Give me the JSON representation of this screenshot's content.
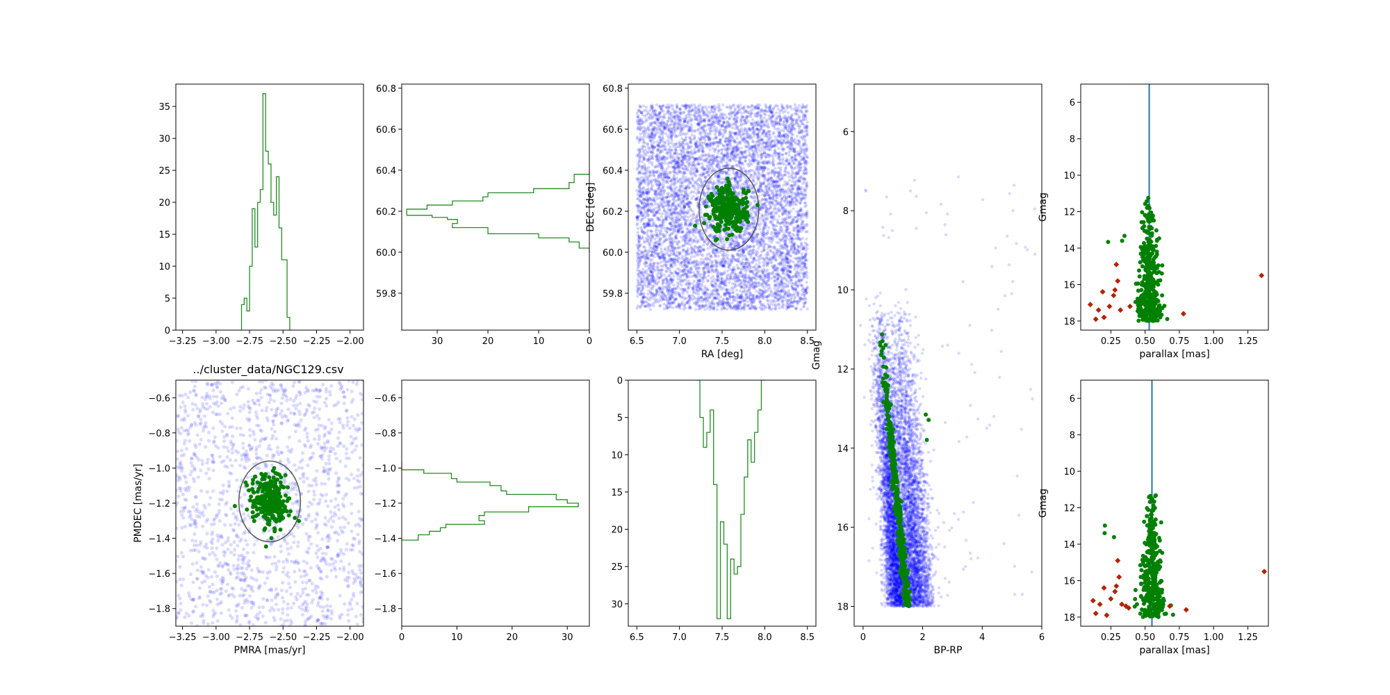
{
  "figure_title": "../cluster_data/NGC129.csv",
  "colors": {
    "field": "#0000ff",
    "members": "#008000",
    "hist": "#228b22",
    "ellipse": "#555555",
    "parallax_line": "#1f77b4",
    "outliers": "#b22200"
  },
  "chart_data": [
    {
      "id": "pmra-hist",
      "type": "histogram",
      "xlim": [
        -3.3,
        -1.9
      ],
      "ylim": [
        0,
        38.5
      ],
      "xticks": [
        -3.25,
        -3.0,
        -2.75,
        -2.5,
        -2.25,
        -2.0
      ],
      "xtick_labels": [
        "−3.25",
        "−3.00",
        "−2.75",
        "−2.50",
        "−2.25",
        "−2.00"
      ],
      "yticks": [
        0,
        5,
        10,
        15,
        20,
        25,
        30,
        35
      ],
      "ytick_labels": [
        "0",
        "5",
        "10",
        "15",
        "20",
        "25",
        "30",
        "35"
      ],
      "xlabel": "",
      "ylabel": "",
      "edges": [
        -2.81,
        -2.79,
        -2.77,
        -2.75,
        -2.73,
        -2.71,
        -2.69,
        -2.67,
        -2.65,
        -2.63,
        -2.61,
        -2.59,
        -2.57,
        -2.55,
        -2.53,
        -2.51,
        -2.49,
        -2.47,
        -2.45,
        -2.43
      ],
      "counts": [
        4,
        5,
        3,
        10,
        19,
        13,
        20,
        22,
        37,
        28,
        26,
        20,
        18,
        24,
        16,
        11,
        11,
        2,
        0
      ]
    },
    {
      "id": "dec-hist",
      "type": "histogram_horizontal",
      "xlim": [
        0,
        37
      ],
      "ylim": [
        59.62,
        60.82
      ],
      "x_inverted": true,
      "xticks": [
        30,
        20,
        10,
        0
      ],
      "xtick_labels": [
        "30",
        "20",
        "10",
        "0"
      ],
      "yticks": [
        59.8,
        60.0,
        60.2,
        60.4,
        60.6,
        60.8
      ],
      "ytick_labels": [
        "59.8",
        "60.0",
        "60.2",
        "60.4",
        "60.6",
        "60.8"
      ],
      "edges": [
        60.0,
        60.02,
        60.05,
        60.07,
        60.09,
        60.12,
        60.14,
        60.16,
        60.17,
        60.18,
        60.21,
        60.23,
        60.25,
        60.27,
        60.29,
        60.31,
        60.34,
        60.38,
        60.4
      ],
      "counts": [
        0,
        2,
        4,
        10,
        20,
        27,
        26,
        28,
        31,
        36,
        32,
        27,
        21,
        20,
        11,
        4,
        3,
        0
      ]
    },
    {
      "id": "ra-dec-scatter",
      "type": "scatter",
      "xlim": [
        6.4,
        8.6
      ],
      "ylim": [
        59.62,
        60.82
      ],
      "xticks": [
        6.5,
        7.0,
        7.5,
        8.0,
        8.5
      ],
      "xtick_labels": [
        "6.5",
        "7.0",
        "7.5",
        "8.0",
        "8.5"
      ],
      "yticks": [
        59.8,
        60.0,
        60.2,
        60.4,
        60.6,
        60.8
      ],
      "ytick_labels": [
        "59.8",
        "60.0",
        "60.2",
        "60.4",
        "60.6",
        "60.8"
      ],
      "xlabel": "RA [deg]",
      "ylabel": "DEC [deg]",
      "field_region": {
        "x": [
          6.5,
          8.5
        ],
        "y": [
          59.72,
          60.72
        ]
      },
      "cluster_center": [
        7.58,
        60.21
      ],
      "ellipse_semi_axes": [
        0.35,
        0.2
      ]
    },
    {
      "id": "cmd",
      "type": "scatter",
      "xlim": [
        -0.3,
        6.0
      ],
      "ylim": [
        18.5,
        4.8
      ],
      "y_inverted": true,
      "xticks": [
        0,
        2,
        4,
        6
      ],
      "xtick_labels": [
        "0",
        "2",
        "4",
        "6"
      ],
      "yticks": [
        6,
        8,
        10,
        12,
        14,
        16,
        18
      ],
      "ytick_labels": [
        "6",
        "8",
        "10",
        "12",
        "14",
        "16",
        "18"
      ],
      "xlabel": "BP-RP",
      "ylabel": "Gmag"
    },
    {
      "id": "parallax-top",
      "type": "scatter",
      "xlim": [
        0.03,
        1.4
      ],
      "ylim": [
        18.5,
        5.0
      ],
      "y_inverted": true,
      "xticks": [
        0.25,
        0.5,
        0.75,
        1.0,
        1.25
      ],
      "xtick_labels": [
        "0.25",
        "0.50",
        "0.75",
        "1.00",
        "1.25"
      ],
      "yticks": [
        6,
        8,
        10,
        12,
        14,
        16,
        18
      ],
      "ytick_labels": [
        "6",
        "8",
        "10",
        "12",
        "14",
        "16",
        "18"
      ],
      "xlabel": "parallax [mas]",
      "ylabel": "Gmag",
      "vline": 0.53,
      "outliers": [
        [
          0.1,
          17.1
        ],
        [
          0.14,
          17.9
        ],
        [
          0.16,
          17.4
        ],
        [
          0.19,
          16.4
        ],
        [
          0.2,
          17.8
        ],
        [
          0.24,
          17.2
        ],
        [
          0.27,
          16.6
        ],
        [
          0.28,
          16.3
        ],
        [
          0.3,
          15.8
        ],
        [
          0.29,
          14.9
        ],
        [
          0.32,
          17.4
        ],
        [
          0.39,
          17.2
        ],
        [
          0.78,
          17.6
        ],
        [
          1.35,
          15.5
        ]
      ]
    },
    {
      "id": "pm-scatter",
      "type": "scatter",
      "xlim": [
        -3.3,
        -1.9
      ],
      "ylim": [
        -1.9,
        -0.5
      ],
      "xticks": [
        -3.25,
        -3.0,
        -2.75,
        -2.5,
        -2.25,
        -2.0
      ],
      "xtick_labels": [
        "−3.25",
        "−3.00",
        "−2.75",
        "−2.50",
        "−2.25",
        "−2.00"
      ],
      "yticks": [
        -0.6,
        -0.8,
        -1.0,
        -1.2,
        -1.4,
        -1.6,
        -1.8
      ],
      "ytick_labels": [
        "−0.6",
        "−0.8",
        "−1.0",
        "−1.2",
        "−1.4",
        "−1.6",
        "−1.8"
      ],
      "xlabel": "PMRA [mas/yr]",
      "ylabel": "PMDEC [mas/yr]",
      "cluster_center": [
        -2.6,
        -1.19
      ],
      "ellipse_semi_axes": [
        0.23,
        0.23
      ]
    },
    {
      "id": "pmdec-hist",
      "type": "histogram_horizontal",
      "xlim": [
        0,
        34
      ],
      "ylim": [
        -1.9,
        -0.5
      ],
      "xticks": [
        0,
        10,
        20,
        30
      ],
      "xtick_labels": [
        "0",
        "10",
        "20",
        "30"
      ],
      "yticks": [
        -0.6,
        -0.8,
        -1.0,
        -1.2,
        -1.4,
        -1.6,
        -1.8
      ],
      "ytick_labels": [
        "−0.6",
        "−0.8",
        "−1.0",
        "−1.2",
        "−1.4",
        "−1.6",
        "−1.8"
      ],
      "edges": [
        -1.41,
        -1.38,
        -1.36,
        -1.34,
        -1.32,
        -1.3,
        -1.27,
        -1.25,
        -1.22,
        -1.2,
        -1.18,
        -1.15,
        -1.13,
        -1.1,
        -1.08,
        -1.06,
        -1.03,
        -1.01,
        -0.96
      ],
      "counts": [
        3,
        5,
        7,
        8,
        15,
        14,
        15,
        23,
        32,
        30,
        28,
        19,
        18,
        16,
        10,
        9,
        4,
        0
      ]
    },
    {
      "id": "ra-hist",
      "type": "histogram",
      "xlim": [
        6.4,
        8.6
      ],
      "ylim": [
        33,
        0
      ],
      "y_inverted": true,
      "xticks": [
        6.5,
        7.0,
        7.5,
        8.0,
        8.5
      ],
      "xtick_labels": [
        "6.5",
        "7.0",
        "7.5",
        "8.0",
        "8.5"
      ],
      "yticks": [
        0,
        5,
        10,
        15,
        20,
        25,
        30
      ],
      "ytick_labels": [
        "0",
        "5",
        "10",
        "15",
        "20",
        "25",
        "30"
      ],
      "edges": [
        7.2,
        7.24,
        7.28,
        7.32,
        7.36,
        7.4,
        7.44,
        7.48,
        7.52,
        7.56,
        7.6,
        7.64,
        7.68,
        7.72,
        7.76,
        7.8,
        7.84,
        7.88,
        7.92,
        7.96,
        8.0
      ],
      "counts": [
        0,
        5,
        9,
        7,
        4,
        14,
        32,
        19,
        22,
        32,
        24,
        26,
        25,
        18,
        13,
        8,
        11,
        7,
        4,
        0
      ]
    },
    {
      "id": "parallax-bottom",
      "type": "scatter",
      "xlim": [
        0.03,
        1.4
      ],
      "ylim": [
        18.5,
        5.0
      ],
      "y_inverted": true,
      "xticks": [
        0.25,
        0.5,
        0.75,
        1.0,
        1.25
      ],
      "xtick_labels": [
        "0.25",
        "0.50",
        "0.75",
        "1.00",
        "1.25"
      ],
      "yticks": [
        6,
        8,
        10,
        12,
        14,
        16,
        18
      ],
      "ytick_labels": [
        "6",
        "8",
        "10",
        "12",
        "14",
        "16",
        "18"
      ],
      "xlabel": "parallax [mas]",
      "ylabel": "Gmag",
      "vline": 0.55,
      "outliers": [
        [
          0.12,
          17.1
        ],
        [
          0.14,
          17.8
        ],
        [
          0.17,
          17.3
        ],
        [
          0.2,
          16.4
        ],
        [
          0.22,
          17.9
        ],
        [
          0.25,
          17.0
        ],
        [
          0.28,
          16.6
        ],
        [
          0.29,
          16.3
        ],
        [
          0.31,
          15.8
        ],
        [
          0.3,
          14.9
        ],
        [
          0.33,
          17.3
        ],
        [
          0.36,
          17.4
        ],
        [
          0.38,
          17.5
        ],
        [
          0.68,
          17.4
        ],
        [
          0.8,
          17.6
        ],
        [
          1.37,
          15.5
        ]
      ]
    }
  ]
}
